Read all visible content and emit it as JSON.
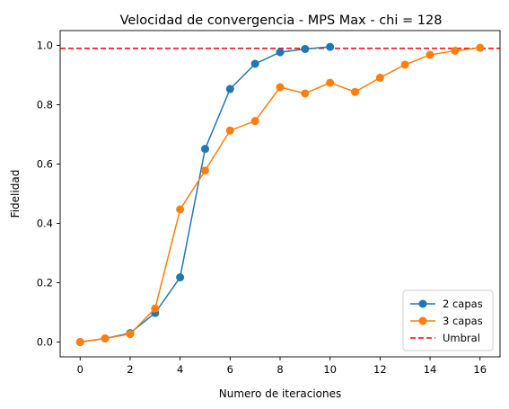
{
  "chart_data": {
    "type": "line",
    "title": "Velocidad de convergencia - MPS Max - chi = 128",
    "xlabel": "Numero de iteraciones",
    "ylabel": "Fidelidad",
    "xlim": [
      -0.8,
      16.8
    ],
    "ylim": [
      -0.05,
      1.05
    ],
    "xticks": [
      0,
      2,
      4,
      6,
      8,
      10,
      12,
      14,
      16
    ],
    "yticks": [
      0.0,
      0.2,
      0.4,
      0.6,
      0.8,
      1.0
    ],
    "xtick_labels": [
      "0",
      "2",
      "4",
      "6",
      "8",
      "10",
      "12",
      "14",
      "16"
    ],
    "ytick_labels": [
      "0.0",
      "0.2",
      "0.4",
      "0.6",
      "0.8",
      "1.0"
    ],
    "grid": false,
    "legend_position": "bottom-right",
    "series": [
      {
        "name": "2 capas",
        "color": "#1f77b4",
        "marker": "circle",
        "x": [
          0,
          1,
          2,
          3,
          4,
          5,
          6,
          7,
          8,
          9,
          10
        ],
        "values": [
          0.0,
          0.012,
          0.03,
          0.098,
          0.218,
          0.651,
          0.853,
          0.938,
          0.977,
          0.988,
          0.995
        ]
      },
      {
        "name": "3 capas",
        "color": "#ff7f0e",
        "marker": "circle",
        "x": [
          0,
          1,
          2,
          3,
          4,
          5,
          6,
          7,
          8,
          9,
          10,
          11,
          12,
          13,
          14,
          15,
          16
        ],
        "values": [
          0.0,
          0.012,
          0.027,
          0.113,
          0.447,
          0.578,
          0.713,
          0.745,
          0.859,
          0.838,
          0.874,
          0.843,
          0.891,
          0.935,
          0.968,
          0.982,
          0.992
        ]
      }
    ],
    "reference_line": {
      "name": "Umbral",
      "y": 0.99,
      "color": "#ff0000",
      "style": "dashed"
    }
  }
}
